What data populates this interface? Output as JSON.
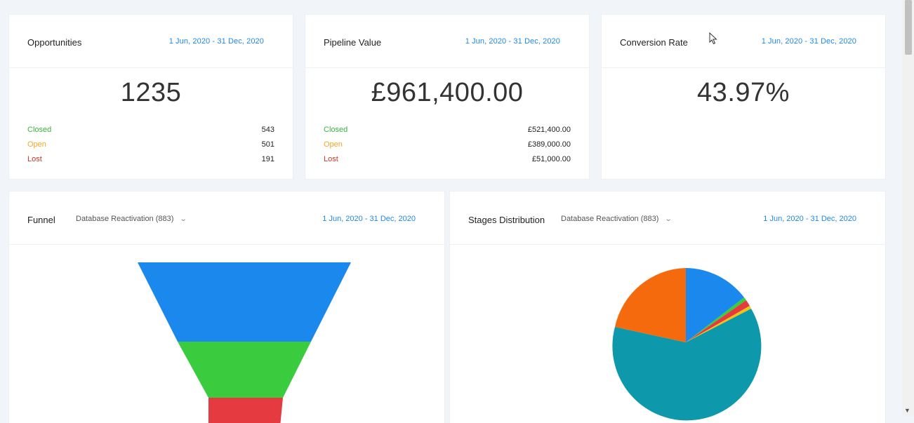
{
  "cards": [
    {
      "title": "Opportunities",
      "date": "1 Jun, 2020 - 31 Dec, 2020",
      "value": "1235",
      "stats": [
        {
          "label": "Closed",
          "value": "543"
        },
        {
          "label": "Open",
          "value": "501"
        },
        {
          "label": "Lost",
          "value": "191"
        }
      ]
    },
    {
      "title": "Pipeline Value",
      "date": "1 Jun, 2020 - 31 Dec, 2020",
      "value": "£961,400.00",
      "stats": [
        {
          "label": "Closed",
          "value": "£521,400.00"
        },
        {
          "label": "Open",
          "value": "£389,000.00"
        },
        {
          "label": "Lost",
          "value": "£51,000.00"
        }
      ]
    },
    {
      "title": "Conversion Rate",
      "date": "1 Jun, 2020 - 31 Dec, 2020",
      "value": "43.97%"
    }
  ],
  "funnel": {
    "title": "Funnel",
    "select": "Database Reactivation (883)",
    "date": "1 Jun, 2020 - 31 Dec, 2020",
    "colors": [
      "#1a88ec",
      "#3acb3e",
      "#e53a3f"
    ]
  },
  "stages": {
    "title": "Stages Distribution",
    "select": "Database Reactivation (883)",
    "date": "1 Jun, 2020 - 31 Dec, 2020",
    "colors": {
      "blue": "#1a88ec",
      "green": "#3acb3e",
      "red": "#e53a3f",
      "yellow": "#f1c40f",
      "teal": "#0e98ab",
      "orange": "#f56a0c"
    }
  },
  "icons": {
    "dropdown": "chevron-down-icon",
    "cursor": "mouse-pointer-icon"
  }
}
